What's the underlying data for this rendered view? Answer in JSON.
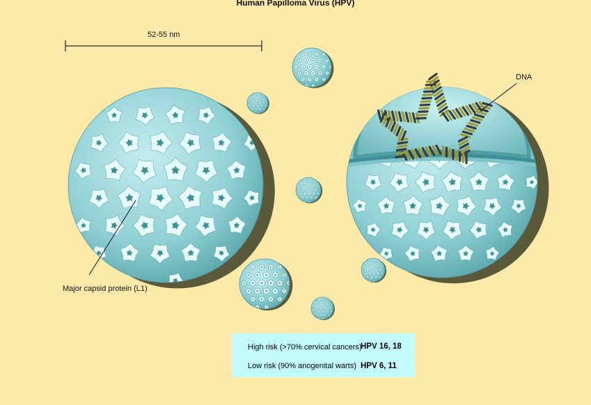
{
  "title": "Human Papilloma Virus (HPV)",
  "scale_label": "52-55 nm",
  "labels": {
    "capsid": "Major capsid protein (L1)",
    "dna": "DNA"
  },
  "risk_table": [
    {
      "label": "High risk (>70% cervical cancers)",
      "types": "HPV 16, 18"
    },
    {
      "label": "Low risk (90% anogenital warts)",
      "types": "HPV 6, 11"
    }
  ],
  "colors": {
    "background": "#fde9aa",
    "capsid": "#8ecfd3",
    "capsomere": "#e6fbfc",
    "capsomere_center": "#3f8f96",
    "dna_dark": "#3a3c3a",
    "dna_light": "#9a9a3a",
    "info_box": "#c2fbfb"
  }
}
